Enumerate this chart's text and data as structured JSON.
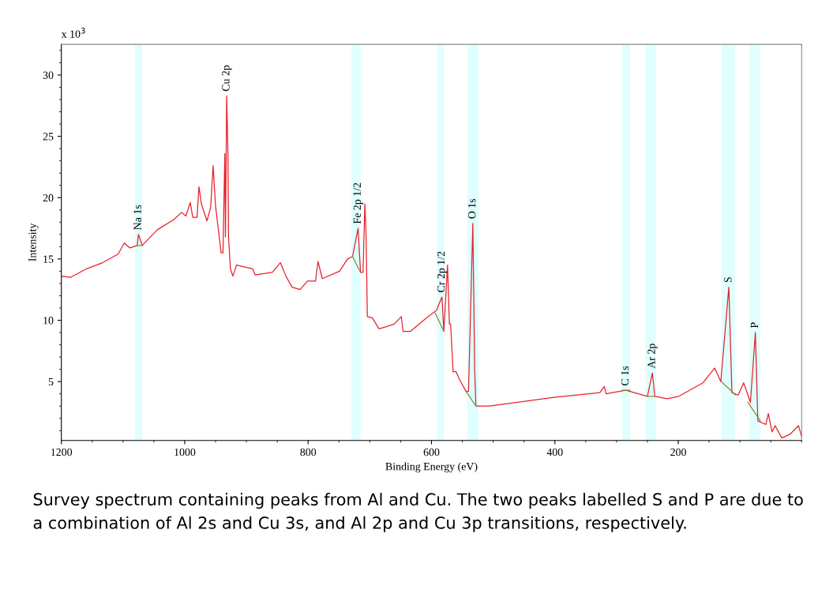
{
  "chart_data": {
    "type": "line",
    "xlabel": "Binding Energy (eV)",
    "ylabel": "Intensity",
    "xlim": [
      1200,
      0
    ],
    "ylim": [
      0.2,
      32.5
    ],
    "xticks": [
      1200,
      1000,
      800,
      600,
      400,
      200
    ],
    "yticks": [
      5,
      10,
      15,
      20,
      25,
      30
    ],
    "grid": false,
    "series": [
      {
        "color": "#e8202a",
        "x": [
          1200,
          1185,
          1159,
          1133,
          1108,
          1098,
          1089,
          1077,
          1075,
          1069,
          1044,
          1018,
          1005,
          998,
          991,
          987,
          980,
          977,
          973,
          964,
          958,
          954,
          950,
          941,
          938,
          935,
          934,
          932,
          930,
          929,
          926,
          922,
          916,
          890,
          886,
          858,
          845,
          836,
          826,
          813,
          801,
          788,
          784,
          777,
          749,
          736,
          728,
          719,
          715,
          711,
          708,
          706,
          704,
          696,
          685,
          672,
          660,
          649,
          646,
          634,
          608,
          592,
          583,
          580,
          574,
          571,
          569,
          565,
          560,
          555,
          544,
          540,
          533,
          530,
          528,
          506,
          404,
          327,
          320,
          317,
          285,
          250,
          242,
          238,
          218,
          199,
          160,
          141,
          131,
          118,
          113,
          103,
          94,
          83,
          75,
          71,
          58,
          54,
          48,
          43,
          32,
          19,
          5,
          0
        ],
        "values": [
          13.6,
          13.5,
          14.2,
          14.7,
          15.4,
          16.3,
          15.9,
          16.1,
          17.0,
          16.1,
          17.4,
          18.2,
          18.8,
          18.5,
          19.6,
          18.4,
          18.4,
          20.9,
          19.5,
          18.1,
          19.2,
          22.6,
          19.3,
          15.5,
          15.5,
          23.6,
          16.8,
          28.3,
          23.8,
          16.8,
          14.2,
          13.6,
          14.5,
          14.2,
          13.7,
          13.9,
          14.7,
          13.6,
          12.7,
          12.5,
          13.2,
          13.2,
          14.8,
          13.4,
          14.0,
          15.0,
          15.2,
          17.5,
          13.9,
          13.9,
          19.5,
          16.8,
          10.3,
          10.2,
          9.3,
          9.5,
          9.7,
          10.3,
          9.1,
          9.1,
          10.2,
          10.8,
          11.9,
          9.1,
          14.5,
          9.7,
          9.7,
          5.8,
          5.8,
          5.2,
          4.2,
          4.2,
          17.9,
          6.0,
          3.0,
          3.0,
          3.7,
          4.1,
          4.6,
          4.0,
          4.3,
          3.8,
          5.7,
          3.8,
          3.6,
          3.8,
          4.9,
          6.1,
          5.0,
          12.7,
          4.1,
          3.9,
          4.9,
          3.3,
          9.0,
          1.8,
          1.5,
          2.4,
          0.9,
          1.4,
          0.4,
          0.7,
          1.4,
          0.5
        ]
      },
      {
        "color": "#8a8a3c",
        "x": [
          1077,
          1069,
          null,
          728,
          715,
          null,
          594,
          580,
          null,
          544,
          528,
          null,
          291,
          278,
          null,
          250,
          238,
          null,
          130,
          107,
          null,
          87,
          67
        ],
        "values": [
          16.1,
          16.1,
          null,
          15.2,
          13.9,
          null,
          10.6,
          9.1,
          null,
          4.2,
          3.0,
          null,
          4.3,
          4.3,
          null,
          3.8,
          3.8,
          null,
          5.0,
          3.9,
          null,
          3.3,
          1.8
        ]
      }
    ],
    "bands": [
      {
        "axis": "x",
        "from": 1081,
        "to": 1069,
        "color": "#e0ffff"
      },
      {
        "axis": "x",
        "from": 730,
        "to": 715,
        "color": "#e0ffff"
      },
      {
        "axis": "x",
        "from": 591,
        "to": 580,
        "color": "#e0ffff"
      },
      {
        "axis": "x",
        "from": 542,
        "to": 524,
        "color": "#e0ffff"
      },
      {
        "axis": "x",
        "from": 291,
        "to": 278,
        "color": "#e0ffff"
      },
      {
        "axis": "x",
        "from": 253,
        "to": 236,
        "color": "#e0ffff"
      },
      {
        "axis": "x",
        "from": 130,
        "to": 108,
        "color": "#e0ffff"
      },
      {
        "axis": "x",
        "from": 85,
        "to": 67,
        "color": "#e0ffff"
      }
    ],
    "annotations": [
      {
        "text": "Na 1s",
        "x": 1075,
        "y": 17.0
      },
      {
        "text": "Cu 2p",
        "x": 932,
        "y": 28.3
      },
      {
        "text": "Fe 2p 1/2",
        "x": 719,
        "y": 17.5
      },
      {
        "text": "Cr 2p 1/2",
        "x": 583,
        "y": 11.9
      },
      {
        "text": "O 1s",
        "x": 533,
        "y": 17.9
      },
      {
        "text": "C 1s",
        "x": 285,
        "y": 4.3
      },
      {
        "text": "Ar 2p",
        "x": 242,
        "y": 5.7
      },
      {
        "text": "S",
        "x": 118,
        "y": 12.7
      },
      {
        "text": "P",
        "x": 75,
        "y": 9.0
      },
      "x 10$^{3}$",
      "Survey spectrum containing peaks from Al and Cu. The two peaks labelled S and P are due to a combination of Al 2s and Cu 3s, and Al 2p and Cu 3p transitions, respectively."
    ]
  }
}
